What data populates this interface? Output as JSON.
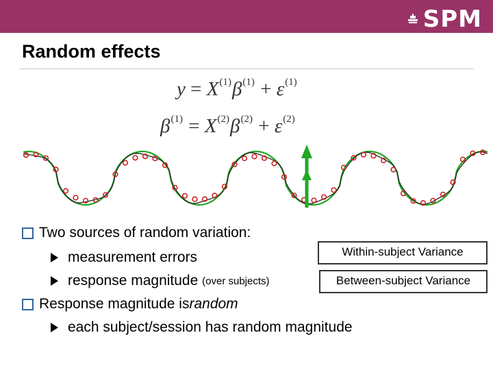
{
  "header": {
    "logo_text": "SPM",
    "bar_color": "#993366"
  },
  "slide": {
    "title": "Random effects"
  },
  "equations": {
    "eq1": {
      "lhs": "y",
      "eq": " = ",
      "x": "X",
      "x_sup": "(1)",
      "b": "β",
      "b_sup": "(1)",
      "plus": " + ",
      "e": "ε",
      "e_sup": "(1)"
    },
    "eq2": {
      "lhs": "β",
      "lhs_sup": "(1)",
      "eq": " = ",
      "x": "X",
      "x_sup": "(2)",
      "b": "β",
      "b_sup": "(2)",
      "plus": " + ",
      "e": "ε",
      "e_sup": "(2)"
    }
  },
  "plot": {
    "curve_color": "#22a822",
    "marker_color": "#cc2222",
    "arrow_color": "#22a822"
  },
  "bullets": {
    "b1": "Two sources of random variation:",
    "b1a": "measurement errors",
    "b1b_main": "response magnitude",
    "b1b_small": "(over subjects)",
    "b2_pre": "Response magnitude is ",
    "b2_em": "random",
    "b2a": "each subject/session has random magnitude"
  },
  "boxes": {
    "within": "Within-subject Variance",
    "between": "Between-subject Variance"
  }
}
